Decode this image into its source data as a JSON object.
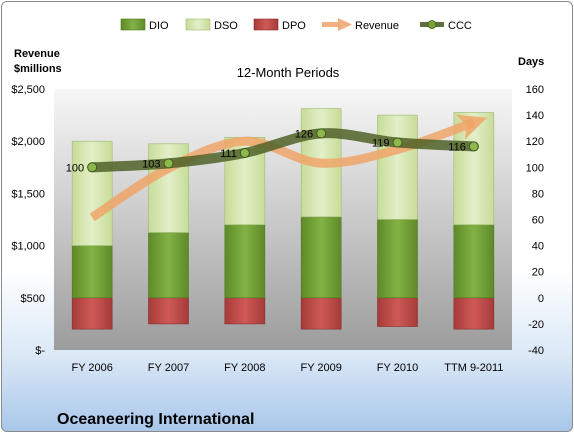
{
  "chart_data": {
    "type": "bar",
    "title": "Oceaneering International",
    "subtitle": "12-Month Periods",
    "categories": [
      "FY 2006",
      "FY 2007",
      "FY 2008",
      "FY 2009",
      "FY 2010",
      "TTM 9-2011"
    ],
    "left_axis": {
      "label_line1": "Revenue",
      "label_line2": "$millions",
      "ylim": [
        0,
        2500
      ],
      "ticks": [
        0,
        500,
        1000,
        1500,
        2000,
        2500
      ],
      "tick_labels": [
        "$-",
        "$500",
        "$1,000",
        "$1,500",
        "$2,000",
        "$2,500"
      ]
    },
    "right_axis": {
      "label": "Days",
      "ylim": [
        -40,
        160
      ],
      "ticks": [
        -40,
        -20,
        0,
        20,
        40,
        60,
        80,
        100,
        120,
        140,
        160
      ],
      "tick_labels": [
        "-40",
        "-20",
        "0",
        "20",
        "40",
        "60",
        "80",
        "100",
        "120",
        "140",
        "160"
      ]
    },
    "series": [
      {
        "name": "DIO",
        "axis": "right",
        "kind": "stacked-bar",
        "color": "#77a33b",
        "values": [
          40,
          50,
          56,
          62,
          60,
          56
        ]
      },
      {
        "name": "DSO",
        "axis": "right",
        "kind": "stacked-bar",
        "color": "#d8e8b4",
        "values": [
          80,
          68,
          67,
          83,
          80,
          86
        ]
      },
      {
        "name": "DPO",
        "axis": "right",
        "kind": "negative-bar",
        "color": "#c0504d",
        "values": [
          -24,
          -20,
          -20,
          -24,
          -22,
          -24
        ]
      },
      {
        "name": "Revenue",
        "axis": "left",
        "kind": "line",
        "color": "#f0a468",
        "values": [
          1270,
          1740,
          2000,
          1790,
          1920,
          2180
        ]
      },
      {
        "name": "CCC",
        "axis": "right",
        "kind": "line",
        "color": "#4f6228",
        "values": [
          100,
          103,
          111,
          126,
          119,
          116
        ]
      }
    ],
    "ccc_labels": [
      "100",
      "103",
      "111",
      "126",
      "119",
      "116"
    ],
    "legend_position": "top",
    "grid": false
  }
}
